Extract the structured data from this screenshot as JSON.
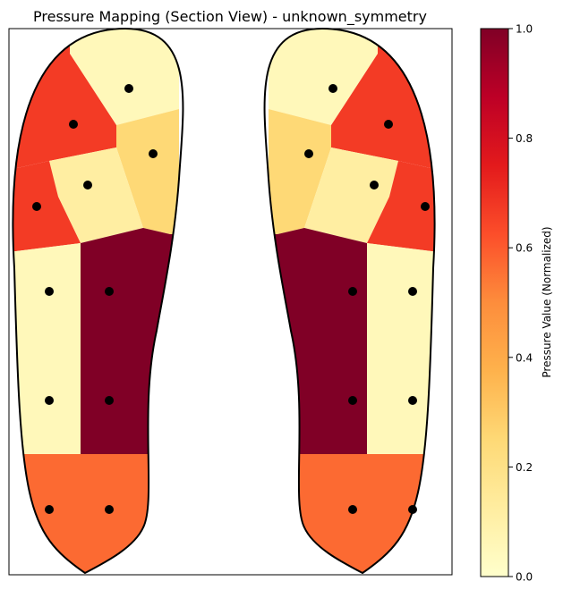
{
  "chart_data": {
    "type": "heatmap",
    "title": "Pressure Mapping (Section View) - unknown_symmetry",
    "colorbar": {
      "label": "Pressure Value (Normalized)",
      "range": [
        0,
        1
      ],
      "ticks": [
        "0.0",
        "0.2",
        "0.4",
        "0.6",
        "0.8",
        "1.0"
      ],
      "tick_values": [
        0,
        0.2,
        0.4,
        0.6,
        0.8,
        1.0
      ],
      "colormap": "YlOrRd",
      "stops": [
        "#ffffcc",
        "#ffeda0",
        "#fed976",
        "#feb24c",
        "#fd8d3c",
        "#fc4e2a",
        "#e31a1c",
        "#bd0026",
        "#800026"
      ]
    },
    "axes_ticks_visible": false,
    "sensor_color": "#000000",
    "outline_color": "#000000",
    "feet": [
      {
        "side": "left",
        "regions": [
          {
            "name": "toe-upper",
            "value": 0.05
          },
          {
            "name": "toe-outer",
            "value": 0.67
          },
          {
            "name": "toe-mid",
            "value": 0.25
          },
          {
            "name": "metatarsal-center",
            "value": 0.12
          },
          {
            "name": "metatarsal-outer",
            "value": 0.67
          },
          {
            "name": "midfoot-outer",
            "value": 0.05
          },
          {
            "name": "midfoot-inner",
            "value": 1.0
          },
          {
            "name": "heel",
            "value": 0.57
          }
        ]
      },
      {
        "side": "right",
        "regions": [
          {
            "name": "toe-upper",
            "value": 0.05
          },
          {
            "name": "toe-outer",
            "value": 0.67
          },
          {
            "name": "toe-mid",
            "value": 0.25
          },
          {
            "name": "metatarsal-center",
            "value": 0.12
          },
          {
            "name": "metatarsal-outer",
            "value": 0.67
          },
          {
            "name": "midfoot-outer",
            "value": 0.05
          },
          {
            "name": "midfoot-inner",
            "value": 1.0
          },
          {
            "name": "heel",
            "value": 0.57
          }
        ]
      }
    ]
  }
}
